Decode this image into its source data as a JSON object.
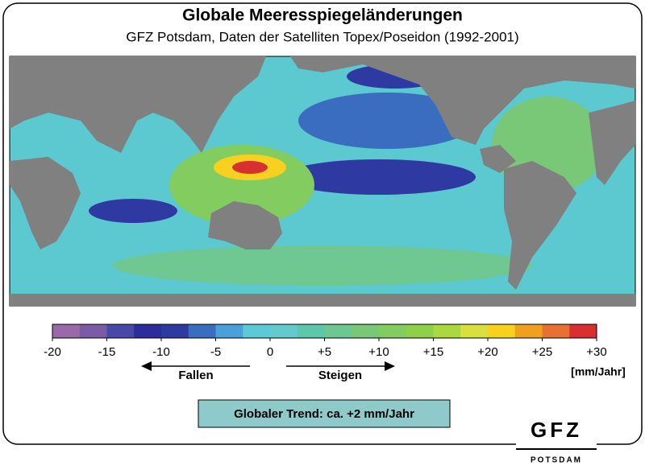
{
  "header": {
    "title": "Globale Meeresspiegeländerungen",
    "subtitle": "GFZ Potsdam, Daten der Satelliten Topex/Poseidon (1992-2001)"
  },
  "colorbar": {
    "lim": [
      -20,
      30
    ],
    "ticks": [
      -20,
      -15,
      -10,
      -5,
      0,
      {
        "value": 5,
        "label": "+5"
      },
      {
        "value": 10,
        "label": "+10"
      },
      {
        "value": 15,
        "label": "+15"
      },
      {
        "value": 20,
        "label": "+20"
      },
      {
        "value": 25,
        "label": "+25"
      },
      {
        "value": 30,
        "label": "+30"
      }
    ],
    "colors": [
      "#9a6aa8",
      "#7a5ca6",
      "#4848a8",
      "#2c2c9c",
      "#2e3aa2",
      "#3a6cc0",
      "#4aa0d8",
      "#5ccad6",
      "#62cccc",
      "#5cc8aa",
      "#6cc890",
      "#78c878",
      "#82cc60",
      "#8ed048",
      "#aad840",
      "#d8e040",
      "#f8d020",
      "#f0a020",
      "#e87030",
      "#d83030"
    ],
    "unit": "[mm/Jahr]"
  },
  "arrows": {
    "left": "Fallen",
    "right": "Steigen"
  },
  "trend": "Globaler Trend: ca. +2 mm/Jahr",
  "logo": {
    "name": "GFZ",
    "place": "POTSDAM"
  }
}
